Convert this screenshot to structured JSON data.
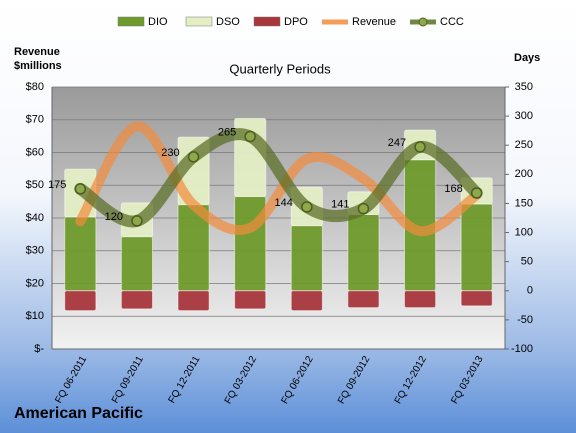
{
  "chart_data": {
    "type": "combo",
    "title": "Quarterly Periods",
    "ylabel": "Revenue $millions",
    "y2label": "Days",
    "footer": "American Pacific",
    "categories": [
      "FQ 06-2011",
      "FQ 09-2011",
      "FQ 12-2011",
      "FQ 03-2012",
      "FQ 06-2012",
      "FQ 09-2012",
      "FQ 12-2012",
      "FQ 03-2013"
    ],
    "series": [
      {
        "name": "DIO",
        "type": "bar",
        "axis": "y2",
        "color": "#6f9a2c",
        "values": [
          127,
          93,
          148,
          162,
          112,
          131,
          225,
          149
        ]
      },
      {
        "name": "DSO",
        "type": "bar",
        "axis": "y2",
        "color": "#e4eec4",
        "values": [
          82,
          58,
          116,
          134,
          66,
          39,
          51,
          45
        ]
      },
      {
        "name": "DPO",
        "type": "bar",
        "axis": "y2",
        "color": "#a8363d",
        "values": [
          -34,
          -31,
          -34,
          -31,
          -34,
          -29,
          -29,
          -26
        ]
      },
      {
        "name": "Revenue",
        "type": "line",
        "axis": "y",
        "color": "#f28c3c",
        "values": [
          39,
          68,
          44,
          37,
          58,
          52,
          36,
          47
        ]
      },
      {
        "name": "CCC",
        "type": "line",
        "axis": "y2",
        "color": "#5c7028",
        "values": [
          175,
          120,
          230,
          265,
          144,
          141,
          247,
          168
        ],
        "labels": true
      }
    ],
    "ylim": [
      0,
      80
    ],
    "yticks": [
      {
        "value": 0,
        "label": "$-"
      },
      {
        "value": 10,
        "label": "$10"
      },
      {
        "value": 20,
        "label": "$20"
      },
      {
        "value": 30,
        "label": "$30"
      },
      {
        "value": 40,
        "label": "$40"
      },
      {
        "value": 50,
        "label": "$50"
      },
      {
        "value": 60,
        "label": "$60"
      },
      {
        "value": 70,
        "label": "$70"
      },
      {
        "value": 80,
        "label": "$80"
      }
    ],
    "y2lim": [
      -100,
      350
    ],
    "y2ticks": [
      -100,
      -50,
      0,
      50,
      100,
      150,
      200,
      250,
      300,
      350
    ],
    "grid": true
  }
}
